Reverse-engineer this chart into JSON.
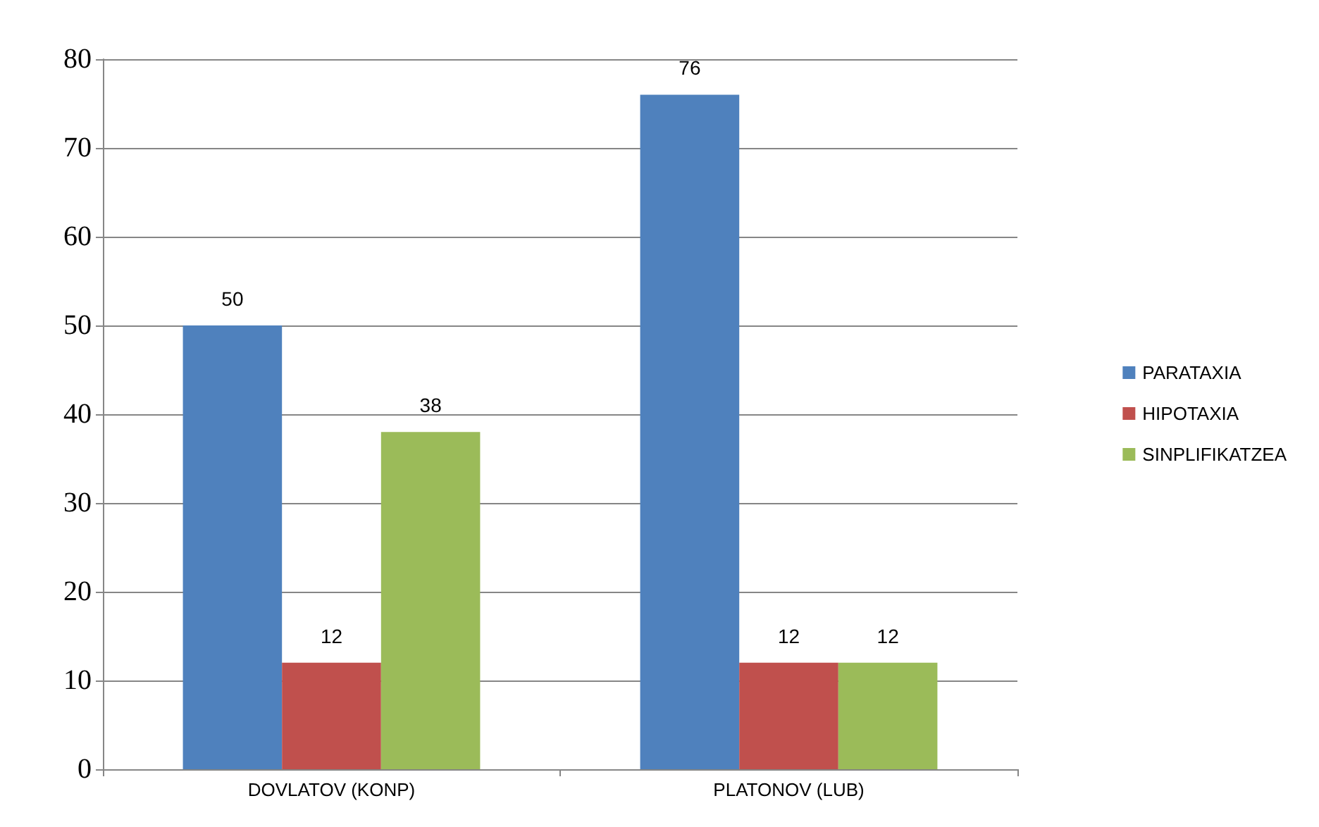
{
  "chart_data": {
    "type": "bar",
    "categories": [
      "DOVLATOV (KONP)",
      "PLATONOV (LUB)"
    ],
    "series": [
      {
        "name": "PARATAXIA",
        "color": "#4f81bd",
        "values": [
          50,
          76
        ]
      },
      {
        "name": "HIPOTAXIA",
        "color": "#c0504d",
        "values": [
          12,
          12
        ]
      },
      {
        "name": "SINPLIFIKATZEA",
        "color": "#9bbb59",
        "values": [
          38,
          12
        ]
      }
    ],
    "ylim": [
      0,
      80
    ],
    "yticks": [
      0,
      10,
      20,
      30,
      40,
      50,
      60,
      70,
      80
    ],
    "grid": "y",
    "legend": "right",
    "data_labels": true
  }
}
